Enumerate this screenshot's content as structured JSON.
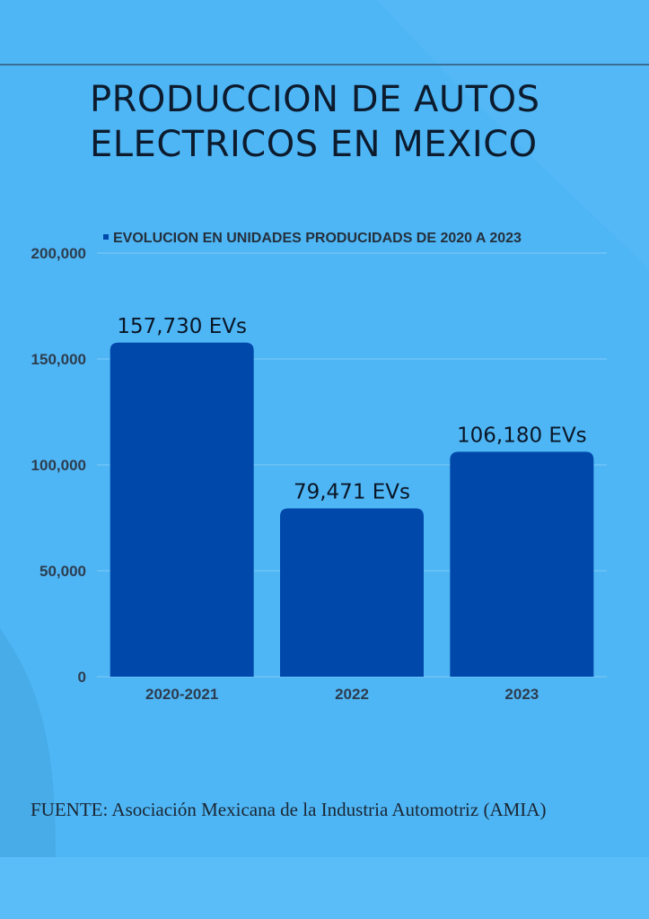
{
  "page": {
    "title_lines": [
      "PRODUCCION DE AUTOS",
      "ELECTRICOS EN MEXICO"
    ],
    "source": "FUENTE: Asociación Mexicana de la Industria Automotriz (AMIA)"
  },
  "colors": {
    "background": "#4fb6f5",
    "bar": "#0049ab",
    "tick_text": "#2d3d4f",
    "label_text": "#0a1626"
  },
  "chart_data": {
    "type": "bar",
    "categories": [
      "2020-2021",
      "2022",
      "2023"
    ],
    "series": [
      {
        "name": "EVOLUCION EN UNIDADES PRODUCIDADS DE 2020 A 2023",
        "values": [
          157730,
          79471,
          106180
        ]
      }
    ],
    "data_labels": [
      "157,730 EVs",
      "79,471 EVs",
      "106,180 EVs"
    ],
    "ylim": [
      0,
      200000
    ],
    "yticks": [
      0,
      50000,
      100000,
      150000,
      200000
    ],
    "ytick_labels": [
      "0",
      "50,000",
      "100,000",
      "150,000",
      "200,000"
    ],
    "legend_position": "top",
    "grid": true
  }
}
